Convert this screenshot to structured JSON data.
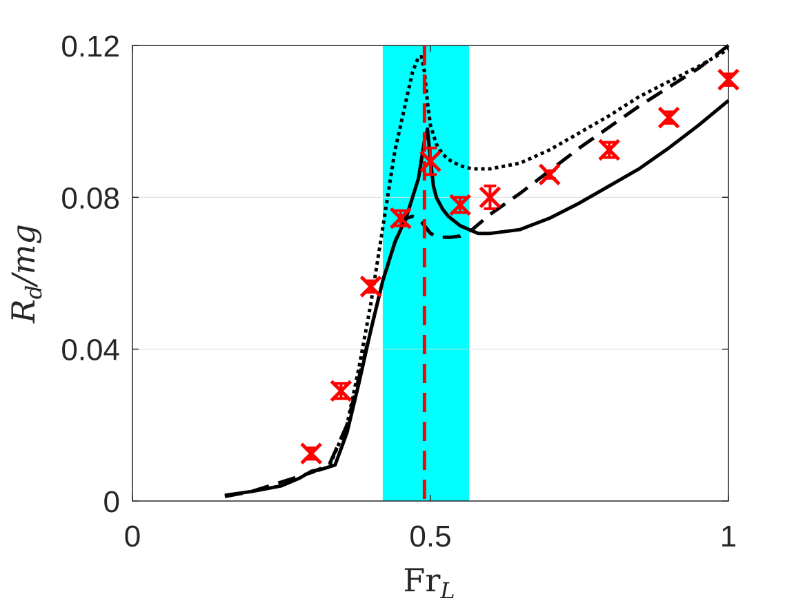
{
  "chart_data": {
    "type": "line",
    "title": "",
    "xlabel": {
      "main": "Fr",
      "sub": "L"
    },
    "ylabel": {
      "main": "R",
      "sub": "d",
      "rest": "/mg"
    },
    "xlim": [
      0,
      1
    ],
    "ylim": [
      0,
      0.12
    ],
    "xticks": [
      0,
      0.5,
      1
    ],
    "xtick_labels": [
      "0",
      "0.5",
      "1"
    ],
    "yticks": [
      0,
      0.04,
      0.08,
      0.12
    ],
    "ytick_labels": [
      "0",
      "0.04",
      "0.08",
      "0.12"
    ],
    "grid": "horizontal",
    "legend": "none",
    "shaded_band": {
      "x": [
        0.42,
        0.565
      ],
      "color": "#00ffff"
    },
    "vertical_line": {
      "x": 0.49,
      "color": "#ff0000",
      "style": "dashed"
    },
    "series": [
      {
        "style": "solid",
        "color": "#000000",
        "x": [
          0.155,
          0.2,
          0.25,
          0.28,
          0.3,
          0.32,
          0.34,
          0.36,
          0.38,
          0.4,
          0.42,
          0.44,
          0.46,
          0.47,
          0.48,
          0.485,
          0.49,
          0.495,
          0.5,
          0.505,
          0.51,
          0.52,
          0.53,
          0.55,
          0.58,
          0.6,
          0.65,
          0.7,
          0.75,
          0.8,
          0.85,
          0.9,
          0.95,
          1.0
        ],
        "y": [
          0.0015,
          0.0025,
          0.004,
          0.006,
          0.0078,
          0.0085,
          0.0095,
          0.018,
          0.031,
          0.045,
          0.058,
          0.068,
          0.075,
          0.08,
          0.085,
          0.09,
          0.095,
          0.098,
          0.09,
          0.083,
          0.08,
          0.077,
          0.075,
          0.0725,
          0.0705,
          0.0705,
          0.0715,
          0.0745,
          0.0785,
          0.083,
          0.0875,
          0.093,
          0.099,
          0.1055
        ]
      },
      {
        "style": "dashed",
        "color": "#000000",
        "x": [
          0.155,
          0.2,
          0.25,
          0.3,
          0.33,
          0.36,
          0.4,
          0.42,
          0.44,
          0.45,
          0.46,
          0.47,
          0.48,
          0.49,
          0.5,
          0.51,
          0.52,
          0.535,
          0.55,
          0.57,
          0.6,
          0.65,
          0.7,
          0.75,
          0.8,
          0.85,
          0.9,
          0.95,
          1.0
        ],
        "y": [
          0.0012,
          0.0025,
          0.005,
          0.0075,
          0.0095,
          0.02,
          0.045,
          0.058,
          0.068,
          0.072,
          0.0745,
          0.075,
          0.0745,
          0.0725,
          0.0705,
          0.0698,
          0.0695,
          0.0695,
          0.0698,
          0.0715,
          0.0755,
          0.081,
          0.087,
          0.093,
          0.0985,
          0.104,
          0.109,
          0.114,
          0.12
        ]
      },
      {
        "style": "dotted",
        "color": "#000000",
        "x": [
          0.3,
          0.33,
          0.36,
          0.38,
          0.4,
          0.42,
          0.44,
          0.46,
          0.47,
          0.48,
          0.485,
          0.49,
          0.495,
          0.5,
          0.51,
          0.52,
          0.53,
          0.55,
          0.57,
          0.6,
          0.65,
          0.7,
          0.75,
          0.8,
          0.85,
          0.9,
          0.95,
          1.0
        ],
        "y": [
          0.0075,
          0.009,
          0.02,
          0.035,
          0.052,
          0.072,
          0.092,
          0.106,
          0.113,
          0.117,
          0.117,
          0.113,
          0.105,
          0.099,
          0.094,
          0.0915,
          0.09,
          0.0883,
          0.0875,
          0.0875,
          0.089,
          0.0925,
          0.097,
          0.1015,
          0.1065,
          0.1105,
          0.1145,
          0.119
        ]
      }
    ],
    "markers": {
      "symbol": "x",
      "color": "#ff0000",
      "points": [
        {
          "x": 0.3,
          "y": 0.0125,
          "err": 0.0015
        },
        {
          "x": 0.35,
          "y": 0.029,
          "err": 0.002
        },
        {
          "x": 0.4,
          "y": 0.0565,
          "err": 0.0015
        },
        {
          "x": 0.45,
          "y": 0.0745,
          "err": 0.002
        },
        {
          "x": 0.5,
          "y": 0.0895,
          "err": 0.0035
        },
        {
          "x": 0.55,
          "y": 0.078,
          "err": 0.002
        },
        {
          "x": 0.6,
          "y": 0.08,
          "err": 0.003
        },
        {
          "x": 0.7,
          "y": 0.086,
          "err": 0.001
        },
        {
          "x": 0.8,
          "y": 0.0925,
          "err": 0.002
        },
        {
          "x": 0.9,
          "y": 0.101,
          "err": 0.0015
        },
        {
          "x": 1.0,
          "y": 0.111,
          "err": 0.0015
        }
      ]
    }
  }
}
